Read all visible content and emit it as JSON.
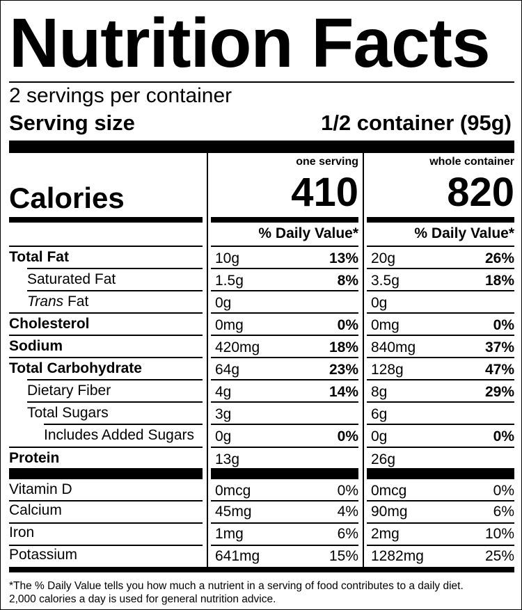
{
  "title": "Nutrition Facts",
  "servings_per_container": "2 servings per container",
  "serving_size_label": "Serving size",
  "serving_size_value": "1/2 container (95g)",
  "col_one_header": "one serving",
  "col_whole_header": "whole container",
  "calories_label": "Calories",
  "calories_one": "410",
  "calories_whole": "820",
  "dv_header": "% Daily Value*",
  "nutrients": [
    {
      "label": "Total Fat",
      "bold": true,
      "indent": 0,
      "one_amt": "10g",
      "one_pct": "13%",
      "whole_amt": "20g",
      "whole_pct": "26%"
    },
    {
      "label": "Saturated Fat",
      "bold": false,
      "indent": 1,
      "one_amt": "1.5g",
      "one_pct": "8%",
      "whole_amt": "3.5g",
      "whole_pct": "18%"
    },
    {
      "label": "Fat",
      "italic_prefix": "Trans",
      "bold": false,
      "indent": 1,
      "one_amt": "0g",
      "one_pct": "",
      "whole_amt": "0g",
      "whole_pct": ""
    },
    {
      "label": "Cholesterol",
      "bold": true,
      "indent": 0,
      "one_amt": "0mg",
      "one_pct": "0%",
      "whole_amt": "0mg",
      "whole_pct": "0%"
    },
    {
      "label": "Sodium",
      "bold": true,
      "indent": 0,
      "one_amt": "420mg",
      "one_pct": "18%",
      "whole_amt": "840mg",
      "whole_pct": "37%"
    },
    {
      "label": "Total Carbohydrate",
      "bold": true,
      "indent": 0,
      "one_amt": "64g",
      "one_pct": "23%",
      "whole_amt": "128g",
      "whole_pct": "47%"
    },
    {
      "label": "Dietary Fiber",
      "bold": false,
      "indent": 1,
      "one_amt": "4g",
      "one_pct": "14%",
      "whole_amt": "8g",
      "whole_pct": "29%"
    },
    {
      "label": "Total Sugars",
      "bold": false,
      "indent": 1,
      "one_amt": "3g",
      "one_pct": "",
      "whole_amt": "6g",
      "whole_pct": ""
    },
    {
      "label": "Includes Added Sugars",
      "bold": false,
      "indent": 2,
      "one_amt": "0g",
      "one_pct": "0%",
      "whole_amt": "0g",
      "whole_pct": "0%"
    },
    {
      "label": "Protein",
      "bold": true,
      "indent": 0,
      "one_amt": "13g",
      "one_pct": "",
      "whole_amt": "26g",
      "whole_pct": ""
    }
  ],
  "vitamins": [
    {
      "label": "Vitamin D",
      "one_amt": "0mcg",
      "one_pct": "0%",
      "whole_amt": "0mcg",
      "whole_pct": "0%"
    },
    {
      "label": "Calcium",
      "one_amt": "45mg",
      "one_pct": "4%",
      "whole_amt": "90mg",
      "whole_pct": "6%"
    },
    {
      "label": "Iron",
      "one_amt": "1mg",
      "one_pct": "6%",
      "whole_amt": "2mg",
      "whole_pct": "10%"
    },
    {
      "label": "Potassium",
      "one_amt": "641mg",
      "one_pct": "15%",
      "whole_amt": "1282mg",
      "whole_pct": "25%"
    }
  ],
  "footnote_line1": "*The % Daily Value tells you how much a nutrient in a serving of food contributes to a daily diet.",
  "footnote_line2": "2,000 calories a day is used for general nutrition advice."
}
